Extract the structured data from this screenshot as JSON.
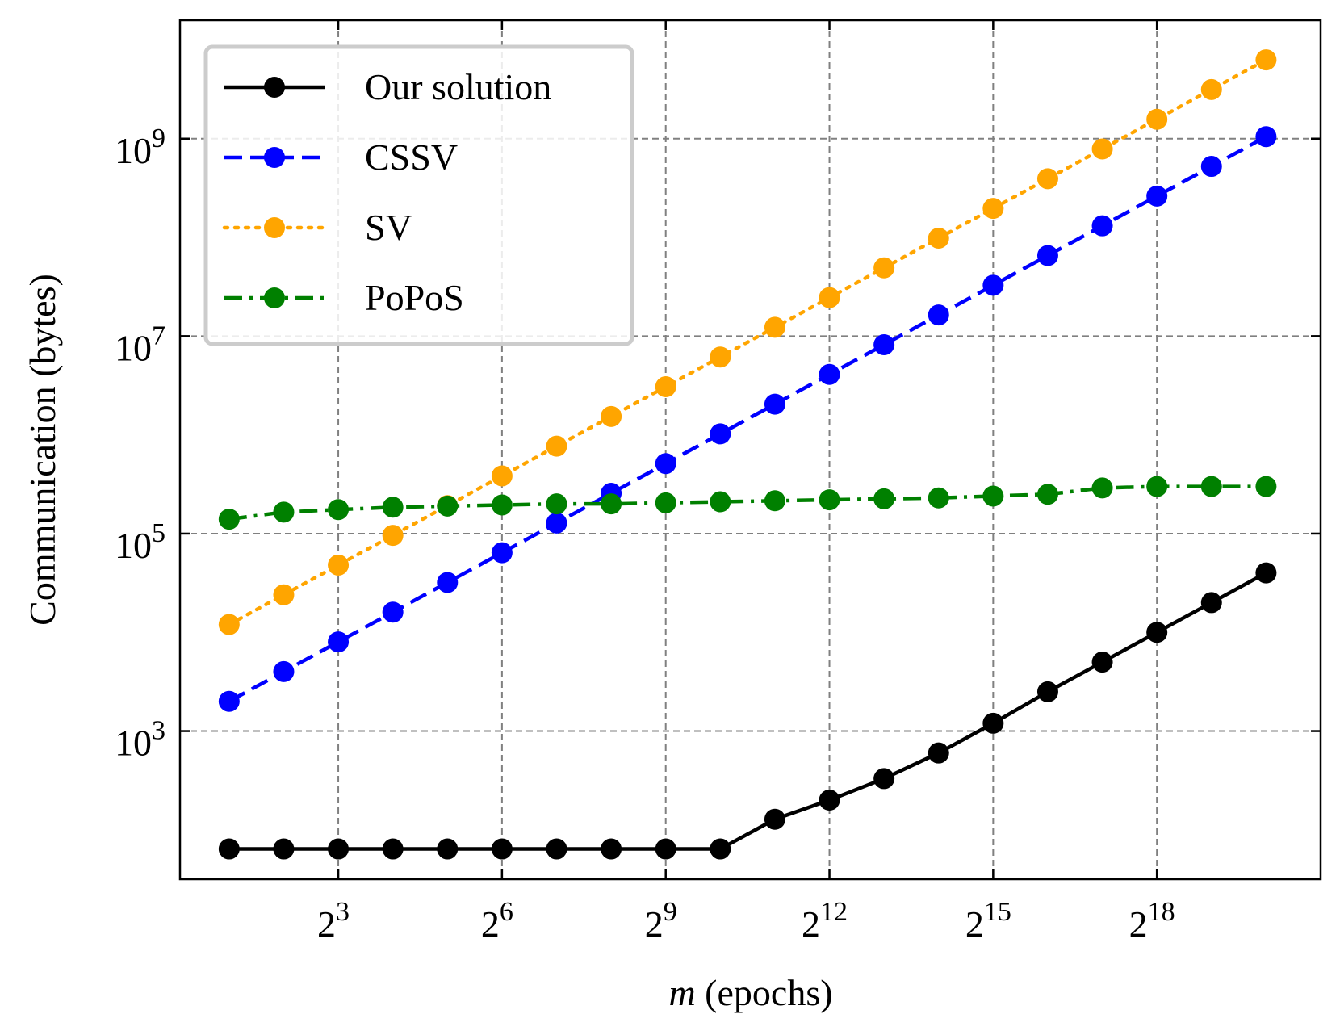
{
  "chart_data": {
    "type": "line",
    "title": "",
    "xlabel_var": "m",
    "xlabel_rest": " (epochs)",
    "ylabel": "Communication (bytes)",
    "xscale": "log2",
    "yscale": "log10",
    "xlim_log2": [
      0.1,
      21.0
    ],
    "ylim_log10": [
      1.5,
      10.2
    ],
    "x_ticks": [
      {
        "base": "2",
        "exp": "3",
        "log2": 3
      },
      {
        "base": "2",
        "exp": "6",
        "log2": 6
      },
      {
        "base": "2",
        "exp": "9",
        "log2": 9
      },
      {
        "base": "2",
        "exp": "12",
        "log2": 12
      },
      {
        "base": "2",
        "exp": "15",
        "log2": 15
      },
      {
        "base": "2",
        "exp": "18",
        "log2": 18
      }
    ],
    "y_ticks": [
      {
        "base": "10",
        "exp": "3",
        "log10": 3
      },
      {
        "base": "10",
        "exp": "5",
        "log10": 5
      },
      {
        "base": "10",
        "exp": "7",
        "log10": 7
      },
      {
        "base": "10",
        "exp": "9",
        "log10": 9
      }
    ],
    "grid": true,
    "legend_position": "top-left",
    "x_log2": [
      1,
      2,
      3,
      4,
      5,
      6,
      7,
      8,
      9,
      10,
      11,
      12,
      13,
      14,
      15,
      16,
      17,
      18,
      19,
      20
    ],
    "series": [
      {
        "name": "Our solution",
        "color": "#000000",
        "linestyle": "solid",
        "values": [
          64,
          64,
          64,
          64,
          64,
          64,
          64,
          64,
          64,
          64,
          128,
          200,
          330,
          600,
          1200,
          2500,
          5000,
          10000,
          20000,
          40000
        ]
      },
      {
        "name": "CSSV",
        "color": "#0000ff",
        "linestyle": "dashed",
        "values": [
          2000,
          4000,
          8000,
          16000,
          32000,
          64000,
          128000,
          256000,
          512000,
          1024000,
          2048000,
          4096000,
          8192000,
          16384000,
          32768000,
          65536000,
          131072000,
          262144000,
          524288000,
          1048576000
        ]
      },
      {
        "name": "SV",
        "color": "#ffa500",
        "linestyle": "dotted",
        "values": [
          12000,
          24000,
          48000,
          96000,
          192000,
          384000,
          768000,
          1536000,
          3072000,
          6144000,
          12288000,
          24576000,
          49152000,
          98304000,
          196608000,
          393216000,
          786432000,
          1572864000,
          3145728000,
          6291456000
        ]
      },
      {
        "name": "PoPoS",
        "color": "#008000",
        "linestyle": "dashdot",
        "values": [
          140000,
          165000,
          175000,
          185000,
          190000,
          195000,
          200000,
          200000,
          205000,
          210000,
          215000,
          220000,
          225000,
          230000,
          240000,
          250000,
          290000,
          300000,
          300000,
          300000
        ]
      }
    ]
  }
}
